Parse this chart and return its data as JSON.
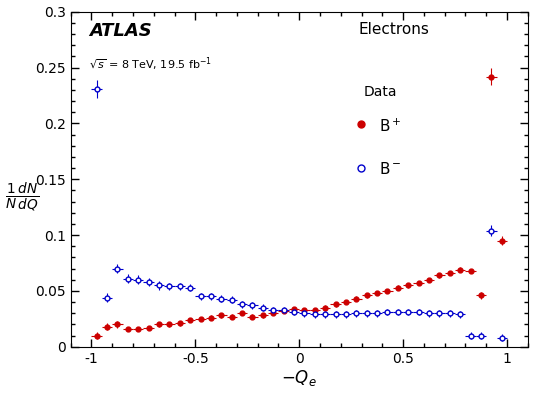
{
  "bplus_x": [
    -0.975,
    -0.925,
    -0.875,
    -0.825,
    -0.775,
    -0.725,
    -0.675,
    -0.625,
    -0.575,
    -0.525,
    -0.475,
    -0.425,
    -0.375,
    -0.325,
    -0.275,
    -0.225,
    -0.175,
    -0.125,
    -0.075,
    -0.025,
    0.025,
    0.075,
    0.125,
    0.175,
    0.225,
    0.275,
    0.325,
    0.375,
    0.425,
    0.475,
    0.525,
    0.575,
    0.625,
    0.675,
    0.725,
    0.775,
    0.825,
    0.875,
    0.925,
    0.975
  ],
  "bplus_y": [
    0.01,
    0.018,
    0.02,
    0.016,
    0.016,
    0.017,
    0.02,
    0.02,
    0.021,
    0.024,
    0.025,
    0.026,
    0.028,
    0.027,
    0.03,
    0.027,
    0.028,
    0.03,
    0.032,
    0.034,
    0.033,
    0.033,
    0.035,
    0.038,
    0.04,
    0.043,
    0.046,
    0.048,
    0.05,
    0.053,
    0.055,
    0.057,
    0.06,
    0.064,
    0.066,
    0.069,
    0.068,
    0.046,
    0.242,
    0.095
  ],
  "bplus_xerr": [
    0.025,
    0.025,
    0.025,
    0.025,
    0.025,
    0.025,
    0.025,
    0.025,
    0.025,
    0.025,
    0.025,
    0.025,
    0.025,
    0.025,
    0.025,
    0.025,
    0.025,
    0.025,
    0.025,
    0.025,
    0.025,
    0.025,
    0.025,
    0.025,
    0.025,
    0.025,
    0.025,
    0.025,
    0.025,
    0.025,
    0.025,
    0.025,
    0.025,
    0.025,
    0.025,
    0.025,
    0.025,
    0.025,
    0.025,
    0.025
  ],
  "bplus_yerr": [
    0.003,
    0.003,
    0.003,
    0.002,
    0.002,
    0.002,
    0.002,
    0.002,
    0.002,
    0.002,
    0.002,
    0.002,
    0.002,
    0.002,
    0.002,
    0.002,
    0.002,
    0.002,
    0.002,
    0.002,
    0.002,
    0.002,
    0.002,
    0.002,
    0.002,
    0.002,
    0.002,
    0.002,
    0.002,
    0.002,
    0.002,
    0.002,
    0.002,
    0.002,
    0.002,
    0.002,
    0.002,
    0.003,
    0.008,
    0.004
  ],
  "bminus_x": [
    -0.975,
    -0.925,
    -0.875,
    -0.825,
    -0.775,
    -0.725,
    -0.675,
    -0.625,
    -0.575,
    -0.525,
    -0.475,
    -0.425,
    -0.375,
    -0.325,
    -0.275,
    -0.225,
    -0.175,
    -0.125,
    -0.075,
    -0.025,
    0.025,
    0.075,
    0.125,
    0.175,
    0.225,
    0.275,
    0.325,
    0.375,
    0.425,
    0.475,
    0.525,
    0.575,
    0.625,
    0.675,
    0.725,
    0.775,
    0.825,
    0.875,
    0.925,
    0.975
  ],
  "bminus_y": [
    0.231,
    0.044,
    0.07,
    0.061,
    0.06,
    0.058,
    0.055,
    0.054,
    0.054,
    0.053,
    0.045,
    0.045,
    0.043,
    0.042,
    0.038,
    0.037,
    0.035,
    0.033,
    0.033,
    0.031,
    0.03,
    0.029,
    0.029,
    0.029,
    0.029,
    0.03,
    0.03,
    0.03,
    0.031,
    0.031,
    0.031,
    0.031,
    0.03,
    0.03,
    0.03,
    0.029,
    0.01,
    0.01,
    0.104,
    0.008
  ],
  "bminus_xerr": [
    0.025,
    0.025,
    0.025,
    0.025,
    0.025,
    0.025,
    0.025,
    0.025,
    0.025,
    0.025,
    0.025,
    0.025,
    0.025,
    0.025,
    0.025,
    0.025,
    0.025,
    0.025,
    0.025,
    0.025,
    0.025,
    0.025,
    0.025,
    0.025,
    0.025,
    0.025,
    0.025,
    0.025,
    0.025,
    0.025,
    0.025,
    0.025,
    0.025,
    0.025,
    0.025,
    0.025,
    0.025,
    0.025,
    0.025,
    0.025
  ],
  "bminus_yerr": [
    0.008,
    0.004,
    0.004,
    0.004,
    0.004,
    0.004,
    0.004,
    0.003,
    0.003,
    0.003,
    0.003,
    0.003,
    0.003,
    0.003,
    0.003,
    0.003,
    0.003,
    0.003,
    0.003,
    0.003,
    0.003,
    0.003,
    0.003,
    0.003,
    0.003,
    0.003,
    0.003,
    0.003,
    0.003,
    0.003,
    0.003,
    0.003,
    0.003,
    0.003,
    0.003,
    0.003,
    0.003,
    0.003,
    0.005,
    0.003
  ],
  "bplus_color": "#cc0000",
  "bminus_color": "#0000cc",
  "xlim": [
    -1.1,
    1.1
  ],
  "ylim": [
    0,
    0.3
  ],
  "xlabel": "$-Q_e$",
  "atlas_label": "ATLAS",
  "energy_label": "$\\sqrt{s}$ = 8 TeV, 19.5 fb$^{-1}$",
  "particle_label": "Electrons",
  "legend_title": "Data",
  "legend_bplus": "B$^+$",
  "legend_bminus": "B$^-$",
  "xticks": [
    -1.0,
    -0.5,
    0.0,
    0.5,
    1.0
  ],
  "yticks": [
    0.0,
    0.05,
    0.1,
    0.15,
    0.2,
    0.25,
    0.3
  ]
}
